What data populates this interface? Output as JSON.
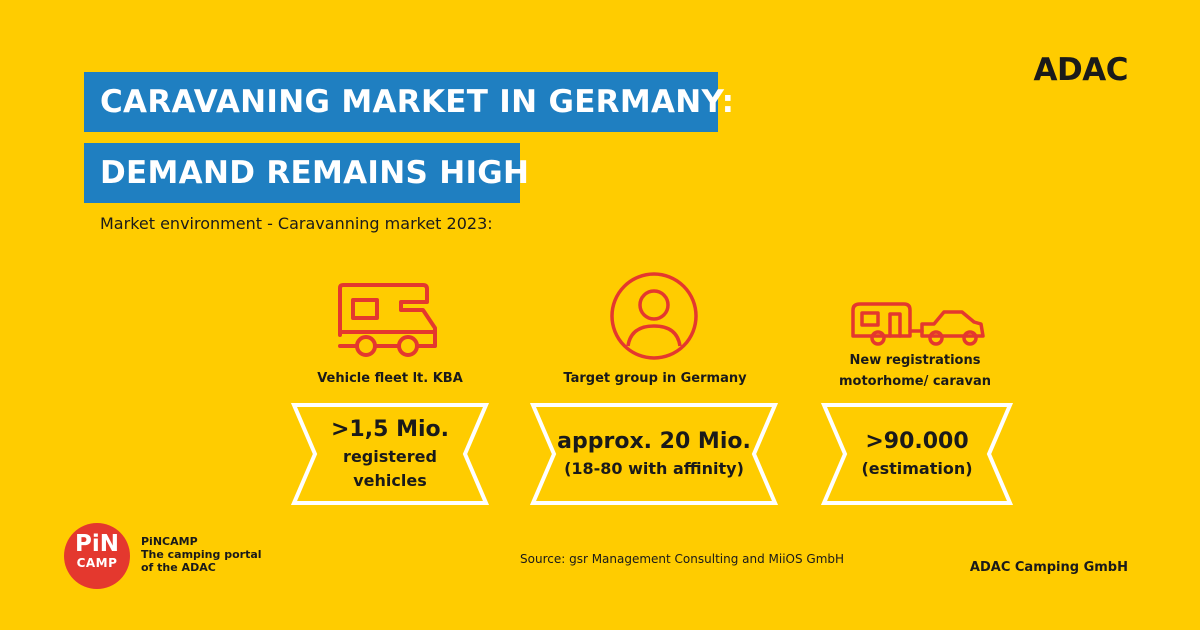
{
  "header": {
    "title_line1": "CARAVANING MARKET IN GERMANY:",
    "title_line2": "DEMAND REMAINS HIGH",
    "subtitle": "Market environment - Caravanning market 2023:",
    "brand": "ADAC"
  },
  "colors": {
    "background": "#FFCC00",
    "title_bg": "#1F7FC1",
    "icon_red": "#E4382E",
    "panel_bg": "#FFCC00",
    "panel_border": "#FFFFFF"
  },
  "stats": [
    {
      "icon": "motorhome-icon",
      "label": "Vehicle fleet lt. KBA",
      "value": ">1,5 Mio.",
      "detail1": "registered",
      "detail2": "vehicles"
    },
    {
      "icon": "person-icon",
      "label": "Target group in Germany",
      "value": "approx. 20 Mio.",
      "detail1": "(18-80 with affinity)"
    },
    {
      "icon": "car-caravan-icon",
      "label_line1": "New registrations",
      "label_line2": "motorhome/ caravan",
      "value": ">90.000",
      "detail1": "(estimation)"
    }
  ],
  "footer": {
    "logo_line1": "PiN",
    "logo_line2": "CAMP",
    "logo_caption1": "PiNCAMP",
    "logo_caption2": "The camping portal",
    "logo_caption3": "of the ADAC",
    "source": "Source: gsr Management Consulting and MiiOS GmbH",
    "company": "ADAC Camping GmbH"
  }
}
